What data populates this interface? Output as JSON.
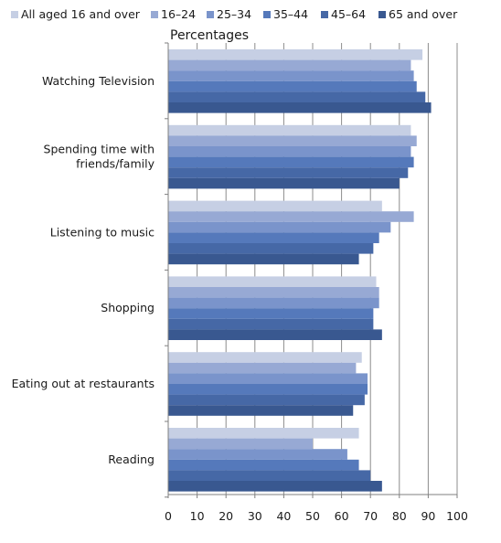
{
  "chart_data": {
    "type": "bar",
    "orientation": "horizontal",
    "title": "Percentages",
    "categories": [
      "Watching Television",
      "Spending time with friends/family",
      "Listening to music",
      "Shopping",
      "Eating out at restaurants",
      "Reading"
    ],
    "category_label_lines": [
      [
        "Watching Television"
      ],
      [
        "Spending time with",
        "friends/family"
      ],
      [
        "Listening to music"
      ],
      [
        "Shopping"
      ],
      [
        "Eating out at restaurants"
      ],
      [
        "Reading"
      ]
    ],
    "series": [
      {
        "name": "All aged 16 and over",
        "color": "#c6cfe4",
        "values": [
          88,
          84,
          74,
          72,
          67,
          66
        ]
      },
      {
        "name": "16–24",
        "color": "#97a9d4",
        "values": [
          84,
          86,
          85,
          73,
          65,
          50
        ]
      },
      {
        "name": "25–34",
        "color": "#7a94cb",
        "values": [
          85,
          84,
          77,
          73,
          69,
          62
        ]
      },
      {
        "name": "35–44",
        "color": "#5579bb",
        "values": [
          86,
          85,
          73,
          71,
          69,
          66
        ]
      },
      {
        "name": "45–64",
        "color": "#4668a6",
        "values": [
          89,
          83,
          71,
          71,
          68,
          70
        ]
      },
      {
        "name": "65 and over",
        "color": "#395890",
        "values": [
          91,
          80,
          66,
          74,
          64,
          74
        ]
      }
    ],
    "xlim": [
      0,
      100
    ],
    "xticks": [
      0,
      10,
      20,
      30,
      40,
      50,
      60,
      70,
      80,
      90,
      100
    ],
    "grid": true,
    "legend_position": "top"
  }
}
